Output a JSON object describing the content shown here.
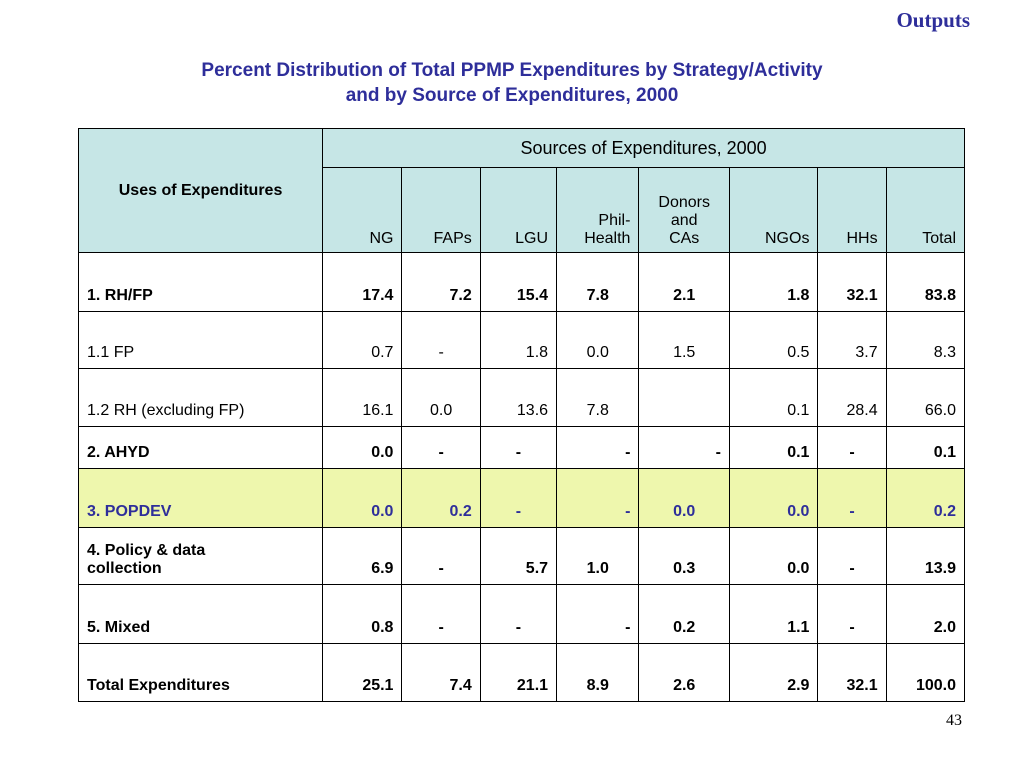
{
  "section_label": "Outputs",
  "title_line1": "Percent Distribution of Total PPMP Expenditures by Strategy/Activity",
  "title_line2": "and by Source of Expenditures,  2000",
  "table": {
    "uses_header": "Uses of Expenditures",
    "sources_header": "Sources of Expenditures, 2000",
    "columns": {
      "ng": "NG",
      "faps": "FAPs",
      "lgu": "LGU",
      "philhealth_1": "Phil-",
      "philhealth_2": "Health",
      "donors_1": "Donors",
      "donors_2": "and",
      "donors_3": "CAs",
      "ngos": "NGOs",
      "hhs": "HHs",
      "total": "Total"
    },
    "rows": [
      {
        "label": "1.  RH/FP",
        "values": [
          "17.4",
          "7.2",
          "15.4",
          "7.8",
          "2.1",
          "1.8",
          "32.1",
          "83.8"
        ]
      },
      {
        "label": "1.1  FP",
        "values": [
          "0.7",
          "-",
          "1.8",
          "0.0",
          "1.5",
          "0.5",
          "3.7",
          "8.3"
        ]
      },
      {
        "label": "1.2  RH  (excluding FP)",
        "values": [
          "16.1",
          "0.0",
          "13.6",
          "7.8",
          "",
          "0.1",
          "28.4",
          "66.0"
        ]
      },
      {
        "label": "2.  AHYD",
        "values": [
          "0.0",
          "-",
          "-",
          "-",
          "-",
          "0.1",
          "-",
          "0.1"
        ]
      },
      {
        "label": "3.  POPDEV",
        "values": [
          "0.0",
          "0.2",
          "-",
          "-",
          "0.0",
          "0.0",
          "-",
          "0.2"
        ]
      },
      {
        "label_1": "4.  Policy & data",
        "label_2": "collection",
        "values": [
          "6.9",
          "-",
          "5.7",
          "1.0",
          "0.3",
          "0.0",
          "-",
          "13.9"
        ]
      },
      {
        "label": "5.  Mixed",
        "values": [
          "0.8",
          "-",
          "-",
          "-",
          "0.2",
          "1.1",
          "-",
          "2.0"
        ]
      },
      {
        "label": "Total Expenditures",
        "values": [
          "25.1",
          "7.4",
          "21.1",
          "8.9",
          "2.6",
          "2.9",
          "32.1",
          "100.0"
        ]
      }
    ]
  },
  "page_number": "43"
}
